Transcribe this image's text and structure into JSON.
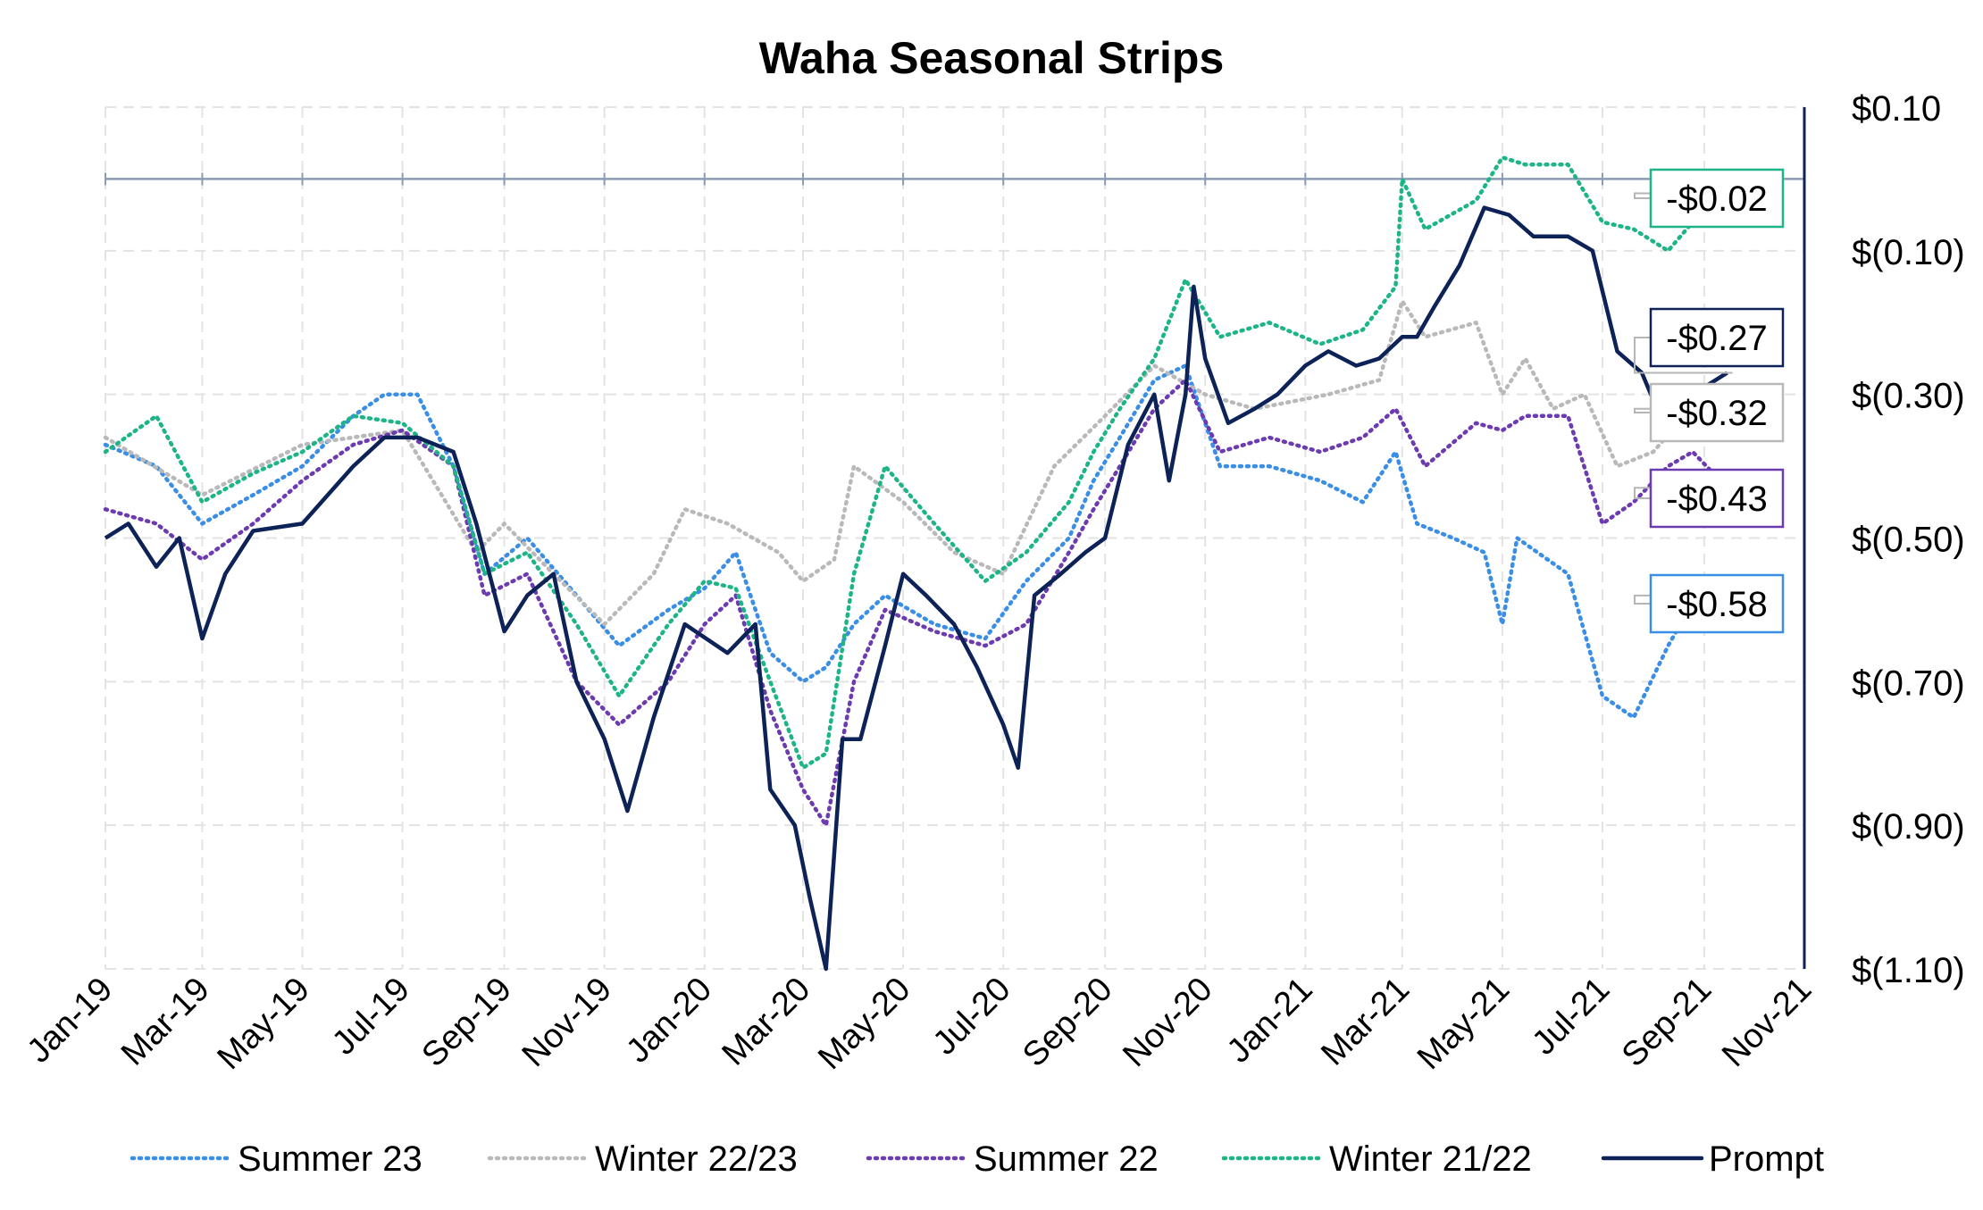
{
  "chart_data": {
    "type": "line",
    "title": "Waha Seasonal Strips",
    "xlabel": "",
    "ylabel": "",
    "x_range": [
      "2019-01-01",
      "2021-11-01"
    ],
    "x_ticks": [
      "Jan-19",
      "Mar-19",
      "May-19",
      "Jul-19",
      "Sep-19",
      "Nov-19",
      "Jan-20",
      "Mar-20",
      "May-20",
      "Jul-20",
      "Sep-20",
      "Nov-20",
      "Jan-21",
      "Mar-21",
      "May-21",
      "Jul-21",
      "Sep-21",
      "Nov-21"
    ],
    "ylim": [
      -1.1,
      0.1
    ],
    "y_ticks": [
      0.1,
      -0.1,
      -0.3,
      -0.5,
      -0.7,
      -0.9,
      -1.1
    ],
    "y_tick_labels": [
      "$0.10",
      "$(0.10)",
      "$(0.30)",
      "$(0.50)",
      "$(0.70)",
      "$(0.90)",
      "$(1.10)"
    ],
    "grid": true,
    "legend_position": "bottom",
    "reference_line": 0,
    "series": [
      {
        "name": "Summer 23",
        "color": "#3a8ee6",
        "style": "dotted",
        "end_label": "-$0.58",
        "points": [
          [
            "2019-01-01",
            -0.37
          ],
          [
            "2019-02-01",
            -0.4
          ],
          [
            "2019-03-01",
            -0.48
          ],
          [
            "2019-04-01",
            -0.44
          ],
          [
            "2019-05-01",
            -0.4
          ],
          [
            "2019-06-01",
            -0.33
          ],
          [
            "2019-06-20",
            -0.3
          ],
          [
            "2019-07-10",
            -0.3
          ],
          [
            "2019-08-01",
            -0.4
          ],
          [
            "2019-08-20",
            -0.55
          ],
          [
            "2019-09-15",
            -0.5
          ],
          [
            "2019-10-15",
            -0.58
          ],
          [
            "2019-11-10",
            -0.65
          ],
          [
            "2019-12-10",
            -0.6
          ],
          [
            "2020-01-01",
            -0.57
          ],
          [
            "2020-01-20",
            -0.52
          ],
          [
            "2020-02-10",
            -0.66
          ],
          [
            "2020-03-01",
            -0.7
          ],
          [
            "2020-03-15",
            -0.68
          ],
          [
            "2020-04-01",
            -0.62
          ],
          [
            "2020-04-20",
            -0.58
          ],
          [
            "2020-05-20",
            -0.62
          ],
          [
            "2020-06-20",
            -0.64
          ],
          [
            "2020-07-15",
            -0.56
          ],
          [
            "2020-08-10",
            -0.5
          ],
          [
            "2020-08-25",
            -0.42
          ],
          [
            "2020-09-10",
            -0.36
          ],
          [
            "2020-10-01",
            -0.28
          ],
          [
            "2020-10-20",
            -0.26
          ],
          [
            "2020-11-10",
            -0.4
          ],
          [
            "2020-12-10",
            -0.4
          ],
          [
            "2021-01-10",
            -0.42
          ],
          [
            "2021-02-05",
            -0.45
          ],
          [
            "2021-02-25",
            -0.38
          ],
          [
            "2021-03-10",
            -0.48
          ],
          [
            "2021-04-01",
            -0.5
          ],
          [
            "2021-04-20",
            -0.52
          ],
          [
            "2021-05-01",
            -0.62
          ],
          [
            "2021-05-10",
            -0.5
          ],
          [
            "2021-06-10",
            -0.55
          ],
          [
            "2021-07-01",
            -0.72
          ],
          [
            "2021-07-20",
            -0.75
          ],
          [
            "2021-08-10",
            -0.65
          ],
          [
            "2021-08-25",
            -0.59
          ],
          [
            "2021-09-15",
            -0.58
          ]
        ]
      },
      {
        "name": "Winter 22/23",
        "color": "#b9b9b9",
        "style": "dotted",
        "end_label": "-$0.32",
        "points": [
          [
            "2019-01-01",
            -0.36
          ],
          [
            "2019-03-01",
            -0.44
          ],
          [
            "2019-05-01",
            -0.37
          ],
          [
            "2019-07-01",
            -0.35
          ],
          [
            "2019-08-15",
            -0.52
          ],
          [
            "2019-09-01",
            -0.48
          ],
          [
            "2019-10-01",
            -0.55
          ],
          [
            "2019-11-01",
            -0.62
          ],
          [
            "2019-12-01",
            -0.55
          ],
          [
            "2019-12-20",
            -0.46
          ],
          [
            "2020-01-15",
            -0.48
          ],
          [
            "2020-02-15",
            -0.52
          ],
          [
            "2020-03-01",
            -0.56
          ],
          [
            "2020-03-20",
            -0.53
          ],
          [
            "2020-04-01",
            -0.4
          ],
          [
            "2020-05-01",
            -0.45
          ],
          [
            "2020-06-01",
            -0.52
          ],
          [
            "2020-07-01",
            -0.55
          ],
          [
            "2020-08-01",
            -0.4
          ],
          [
            "2020-09-01",
            -0.33
          ],
          [
            "2020-10-01",
            -0.26
          ],
          [
            "2020-11-01",
            -0.3
          ],
          [
            "2020-12-01",
            -0.32
          ],
          [
            "2021-01-15",
            -0.3
          ],
          [
            "2021-02-15",
            -0.28
          ],
          [
            "2021-03-01",
            -0.17
          ],
          [
            "2021-03-15",
            -0.22
          ],
          [
            "2021-04-15",
            -0.2
          ],
          [
            "2021-05-01",
            -0.3
          ],
          [
            "2021-05-15",
            -0.25
          ],
          [
            "2021-06-01",
            -0.32
          ],
          [
            "2021-06-20",
            -0.3
          ],
          [
            "2021-07-10",
            -0.4
          ],
          [
            "2021-08-01",
            -0.38
          ],
          [
            "2021-08-20",
            -0.33
          ],
          [
            "2021-09-15",
            -0.32
          ]
        ]
      },
      {
        "name": "Summer 22",
        "color": "#6c3bb0",
        "style": "dotted",
        "end_label": "-$0.43",
        "points": [
          [
            "2019-01-01",
            -0.46
          ],
          [
            "2019-02-01",
            -0.48
          ],
          [
            "2019-03-01",
            -0.53
          ],
          [
            "2019-04-01",
            -0.48
          ],
          [
            "2019-05-01",
            -0.42
          ],
          [
            "2019-06-01",
            -0.37
          ],
          [
            "2019-07-01",
            -0.35
          ],
          [
            "2019-08-01",
            -0.4
          ],
          [
            "2019-08-20",
            -0.58
          ],
          [
            "2019-09-15",
            -0.55
          ],
          [
            "2019-10-15",
            -0.7
          ],
          [
            "2019-11-10",
            -0.76
          ],
          [
            "2019-12-10",
            -0.7
          ],
          [
            "2020-01-01",
            -0.62
          ],
          [
            "2020-01-20",
            -0.58
          ],
          [
            "2020-02-10",
            -0.74
          ],
          [
            "2020-03-01",
            -0.85
          ],
          [
            "2020-03-15",
            -0.9
          ],
          [
            "2020-04-01",
            -0.7
          ],
          [
            "2020-04-20",
            -0.6
          ],
          [
            "2020-05-20",
            -0.63
          ],
          [
            "2020-06-20",
            -0.65
          ],
          [
            "2020-07-15",
            -0.62
          ],
          [
            "2020-08-10",
            -0.52
          ],
          [
            "2020-08-25",
            -0.46
          ],
          [
            "2020-09-10",
            -0.4
          ],
          [
            "2020-10-01",
            -0.32
          ],
          [
            "2020-10-20",
            -0.28
          ],
          [
            "2020-11-10",
            -0.38
          ],
          [
            "2020-12-10",
            -0.36
          ],
          [
            "2021-01-10",
            -0.38
          ],
          [
            "2021-02-05",
            -0.36
          ],
          [
            "2021-02-25",
            -0.32
          ],
          [
            "2021-03-15",
            -0.4
          ],
          [
            "2021-04-15",
            -0.34
          ],
          [
            "2021-05-01",
            -0.35
          ],
          [
            "2021-05-15",
            -0.33
          ],
          [
            "2021-06-10",
            -0.33
          ],
          [
            "2021-07-01",
            -0.48
          ],
          [
            "2021-07-20",
            -0.45
          ],
          [
            "2021-08-10",
            -0.4
          ],
          [
            "2021-08-25",
            -0.38
          ],
          [
            "2021-09-15",
            -0.43
          ]
        ]
      },
      {
        "name": "Winter 21/22",
        "color": "#1db587",
        "style": "dotted",
        "end_label": "-$0.02",
        "points": [
          [
            "2019-01-01",
            -0.38
          ],
          [
            "2019-02-01",
            -0.33
          ],
          [
            "2019-03-01",
            -0.45
          ],
          [
            "2019-04-01",
            -0.41
          ],
          [
            "2019-05-01",
            -0.38
          ],
          [
            "2019-06-01",
            -0.33
          ],
          [
            "2019-07-01",
            -0.34
          ],
          [
            "2019-08-01",
            -0.4
          ],
          [
            "2019-08-20",
            -0.55
          ],
          [
            "2019-09-15",
            -0.52
          ],
          [
            "2019-10-15",
            -0.62
          ],
          [
            "2019-11-10",
            -0.72
          ],
          [
            "2019-12-10",
            -0.62
          ],
          [
            "2020-01-01",
            -0.56
          ],
          [
            "2020-01-20",
            -0.57
          ],
          [
            "2020-02-10",
            -0.7
          ],
          [
            "2020-03-01",
            -0.82
          ],
          [
            "2020-03-15",
            -0.8
          ],
          [
            "2020-04-01",
            -0.55
          ],
          [
            "2020-04-20",
            -0.4
          ],
          [
            "2020-05-20",
            -0.48
          ],
          [
            "2020-06-20",
            -0.56
          ],
          [
            "2020-07-15",
            -0.52
          ],
          [
            "2020-08-10",
            -0.45
          ],
          [
            "2020-08-25",
            -0.38
          ],
          [
            "2020-09-10",
            -0.32
          ],
          [
            "2020-10-01",
            -0.25
          ],
          [
            "2020-10-20",
            -0.14
          ],
          [
            "2020-11-10",
            -0.22
          ],
          [
            "2020-12-10",
            -0.2
          ],
          [
            "2021-01-10",
            -0.23
          ],
          [
            "2021-02-05",
            -0.21
          ],
          [
            "2021-02-25",
            -0.15
          ],
          [
            "2021-03-01",
            -0.0
          ],
          [
            "2021-03-15",
            -0.07
          ],
          [
            "2021-04-15",
            -0.03
          ],
          [
            "2021-05-01",
            0.03
          ],
          [
            "2021-05-15",
            0.02
          ],
          [
            "2021-06-10",
            0.02
          ],
          [
            "2021-07-01",
            -0.06
          ],
          [
            "2021-07-20",
            -0.07
          ],
          [
            "2021-08-10",
            -0.1
          ],
          [
            "2021-08-25",
            -0.06
          ],
          [
            "2021-09-15",
            -0.02
          ]
        ]
      },
      {
        "name": "Prompt",
        "color": "#0d2257",
        "style": "solid",
        "end_label": "-$0.27",
        "points": [
          [
            "2019-01-01",
            -0.5
          ],
          [
            "2019-01-15",
            -0.48
          ],
          [
            "2019-02-01",
            -0.54
          ],
          [
            "2019-02-15",
            -0.5
          ],
          [
            "2019-03-01",
            -0.64
          ],
          [
            "2019-03-15",
            -0.55
          ],
          [
            "2019-04-01",
            -0.49
          ],
          [
            "2019-05-01",
            -0.48
          ],
          [
            "2019-06-01",
            -0.4
          ],
          [
            "2019-06-20",
            -0.36
          ],
          [
            "2019-07-10",
            -0.36
          ],
          [
            "2019-08-01",
            -0.38
          ],
          [
            "2019-08-15",
            -0.48
          ],
          [
            "2019-09-01",
            -0.63
          ],
          [
            "2019-09-15",
            -0.58
          ],
          [
            "2019-10-01",
            -0.55
          ],
          [
            "2019-10-15",
            -0.7
          ],
          [
            "2019-11-01",
            -0.78
          ],
          [
            "2019-11-15",
            -0.88
          ],
          [
            "2019-12-01",
            -0.75
          ],
          [
            "2019-12-20",
            -0.62
          ],
          [
            "2020-01-15",
            -0.66
          ],
          [
            "2020-02-01",
            -0.62
          ],
          [
            "2020-02-10",
            -0.85
          ],
          [
            "2020-02-25",
            -0.9
          ],
          [
            "2020-03-05",
            -1.0
          ],
          [
            "2020-03-15",
            -1.1
          ],
          [
            "2020-03-25",
            -0.78
          ],
          [
            "2020-04-05",
            -0.78
          ],
          [
            "2020-04-20",
            -0.65
          ],
          [
            "2020-05-01",
            -0.55
          ],
          [
            "2020-05-15",
            -0.58
          ],
          [
            "2020-06-01",
            -0.62
          ],
          [
            "2020-06-15",
            -0.68
          ],
          [
            "2020-07-01",
            -0.76
          ],
          [
            "2020-07-10",
            -0.82
          ],
          [
            "2020-07-20",
            -0.58
          ],
          [
            "2020-08-05",
            -0.55
          ],
          [
            "2020-08-20",
            -0.52
          ],
          [
            "2020-09-01",
            -0.5
          ],
          [
            "2020-09-15",
            -0.37
          ],
          [
            "2020-10-01",
            -0.3
          ],
          [
            "2020-10-10",
            -0.42
          ],
          [
            "2020-10-20",
            -0.3
          ],
          [
            "2020-10-25",
            -0.15
          ],
          [
            "2020-11-01",
            -0.25
          ],
          [
            "2020-11-15",
            -0.34
          ],
          [
            "2020-12-01",
            -0.32
          ],
          [
            "2020-12-15",
            -0.3
          ],
          [
            "2021-01-01",
            -0.26
          ],
          [
            "2021-01-15",
            -0.24
          ],
          [
            "2021-02-01",
            -0.26
          ],
          [
            "2021-02-15",
            -0.25
          ],
          [
            "2021-03-01",
            -0.22
          ],
          [
            "2021-03-10",
            -0.22
          ],
          [
            "2021-03-20",
            -0.18
          ],
          [
            "2021-04-05",
            -0.12
          ],
          [
            "2021-04-20",
            -0.04
          ],
          [
            "2021-05-05",
            -0.05
          ],
          [
            "2021-05-20",
            -0.08
          ],
          [
            "2021-06-10",
            -0.08
          ],
          [
            "2021-06-25",
            -0.1
          ],
          [
            "2021-07-10",
            -0.24
          ],
          [
            "2021-07-25",
            -0.27
          ],
          [
            "2021-08-05",
            -0.33
          ],
          [
            "2021-08-20",
            -0.34
          ],
          [
            "2021-08-25",
            -0.3
          ],
          [
            "2021-09-15",
            -0.27
          ]
        ]
      }
    ]
  }
}
